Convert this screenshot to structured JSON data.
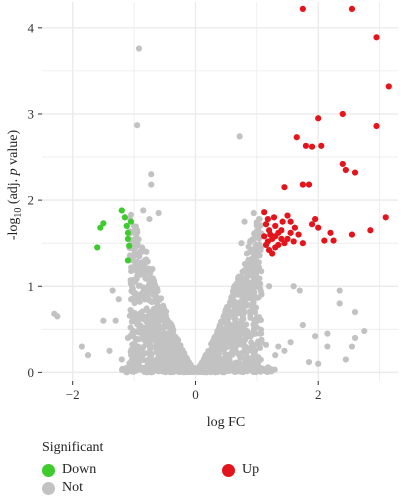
{
  "chart_data": {
    "type": "scatter",
    "title": "",
    "xlabel": "log FC",
    "ylabel_prefix": "-log",
    "ylabel_sub": "10",
    "ylabel_mid": " (adj. ",
    "ylabel_italic": "p",
    "ylabel_suffix": " value)",
    "xlim": [
      -2.5,
      3.3
    ],
    "ylim": [
      -0.1,
      4.3
    ],
    "xticks": [
      -2,
      0,
      2
    ],
    "yticks": [
      0,
      1,
      2,
      3,
      4
    ],
    "grid": true,
    "legend": {
      "title": "Significant",
      "placement": "bottom",
      "entries": [
        {
          "key": "Down",
          "label": "Down",
          "color": "#3ecb2e"
        },
        {
          "key": "Not",
          "label": "Not",
          "color": "#c2c2c2"
        },
        {
          "key": "Up",
          "label": "Up",
          "color": "#e3141b"
        }
      ]
    },
    "series": [
      {
        "name": "Down",
        "color": "#3ecb2e",
        "points": [
          [
            -1.55,
            1.68
          ],
          [
            -1.5,
            1.73
          ],
          [
            -1.6,
            1.45
          ],
          [
            -1.2,
            1.88
          ],
          [
            -1.15,
            1.8
          ],
          [
            -1.12,
            1.7
          ],
          [
            -1.1,
            1.62
          ],
          [
            -1.1,
            1.55
          ],
          [
            -1.08,
            1.47
          ],
          [
            -1.1,
            1.3
          ],
          [
            -1.05,
            1.75
          ]
        ]
      },
      {
        "name": "Up",
        "color": "#e3141b",
        "points": [
          [
            1.75,
            4.22
          ],
          [
            2.55,
            4.22
          ],
          [
            2.95,
            3.89
          ],
          [
            3.15,
            3.32
          ],
          [
            2.0,
            2.95
          ],
          [
            2.4,
            3.0
          ],
          [
            2.95,
            2.86
          ],
          [
            1.65,
            2.73
          ],
          [
            1.8,
            2.63
          ],
          [
            1.9,
            2.62
          ],
          [
            2.05,
            2.63
          ],
          [
            2.4,
            2.42
          ],
          [
            2.45,
            2.35
          ],
          [
            2.6,
            2.32
          ],
          [
            1.75,
            2.18
          ],
          [
            1.85,
            2.18
          ],
          [
            1.45,
            2.15
          ],
          [
            3.1,
            1.8
          ],
          [
            2.85,
            1.65
          ],
          [
            2.55,
            1.6
          ],
          [
            2.25,
            1.53
          ],
          [
            2.1,
            1.53
          ],
          [
            1.75,
            1.5
          ],
          [
            1.95,
            1.78
          ],
          [
            2.0,
            1.68
          ],
          [
            2.2,
            1.62
          ],
          [
            1.9,
            1.72
          ],
          [
            1.5,
            1.82
          ],
          [
            1.55,
            1.75
          ],
          [
            1.62,
            1.68
          ],
          [
            1.68,
            1.6
          ],
          [
            1.12,
            1.86
          ],
          [
            1.18,
            1.78
          ],
          [
            1.2,
            1.65
          ],
          [
            1.22,
            1.6
          ],
          [
            1.25,
            1.55
          ],
          [
            1.3,
            1.58
          ],
          [
            1.35,
            1.62
          ],
          [
            1.4,
            1.55
          ],
          [
            1.45,
            1.5
          ],
          [
            1.3,
            1.7
          ],
          [
            1.15,
            1.48
          ],
          [
            1.2,
            1.42
          ],
          [
            1.25,
            1.38
          ],
          [
            1.4,
            1.65
          ],
          [
            1.5,
            1.55
          ],
          [
            1.6,
            1.52
          ],
          [
            1.12,
            1.58
          ],
          [
            1.35,
            1.48
          ],
          [
            1.15,
            1.72
          ],
          [
            1.28,
            1.8
          ],
          [
            1.42,
            1.75
          ],
          [
            1.55,
            1.62
          ],
          [
            1.18,
            1.52
          ],
          [
            1.3,
            1.45
          ]
        ]
      },
      {
        "name": "Not",
        "color": "#c2c2c2",
        "points": [
          [
            -0.92,
            3.76
          ],
          [
            -0.95,
            2.87
          ],
          [
            0.72,
            2.74
          ],
          [
            -0.72,
            2.3
          ],
          [
            -0.72,
            2.18
          ],
          [
            -0.85,
            1.88
          ],
          [
            -0.95,
            1.65
          ],
          [
            -0.6,
            1.85
          ],
          [
            -0.75,
            1.78
          ],
          [
            -1.0,
            1.2
          ],
          [
            -0.9,
            0.9
          ],
          [
            -1.35,
            0.95
          ],
          [
            -1.25,
            0.85
          ],
          [
            -1.3,
            0.6
          ],
          [
            -1.5,
            0.6
          ],
          [
            -2.25,
            0.65
          ],
          [
            -2.3,
            0.68
          ],
          [
            -1.85,
            0.3
          ],
          [
            -1.75,
            0.2
          ],
          [
            -1.4,
            0.25
          ],
          [
            -1.2,
            0.15
          ],
          [
            1.6,
            1.0
          ],
          [
            1.7,
            0.95
          ],
          [
            1.75,
            0.55
          ],
          [
            1.55,
            0.35
          ],
          [
            1.45,
            0.25
          ],
          [
            1.35,
            0.3
          ],
          [
            2.35,
            0.95
          ],
          [
            2.35,
            0.8
          ],
          [
            2.6,
            0.7
          ],
          [
            2.75,
            0.48
          ],
          [
            2.6,
            0.4
          ],
          [
            2.55,
            0.3
          ],
          [
            2.15,
            0.45
          ],
          [
            2.45,
            0.15
          ],
          [
            1.85,
            0.12
          ],
          [
            2.0,
            0.1
          ],
          [
            1.3,
            0.2
          ],
          [
            1.15,
            0.32
          ],
          [
            1.05,
            0.45
          ],
          [
            -0.8,
            1.4
          ],
          [
            -0.7,
            1.2
          ],
          [
            0.75,
            1.5
          ],
          [
            0.9,
            1.4
          ],
          [
            1.0,
            1.2
          ],
          [
            0.95,
            1.85
          ],
          [
            0.8,
            1.75
          ],
          [
            0.85,
            1.05
          ],
          [
            -1.1,
            0.4
          ],
          [
            1.2,
            1.0
          ],
          [
            2.15,
            0.3
          ],
          [
            1.95,
            0.42
          ]
        ]
      }
    ]
  }
}
